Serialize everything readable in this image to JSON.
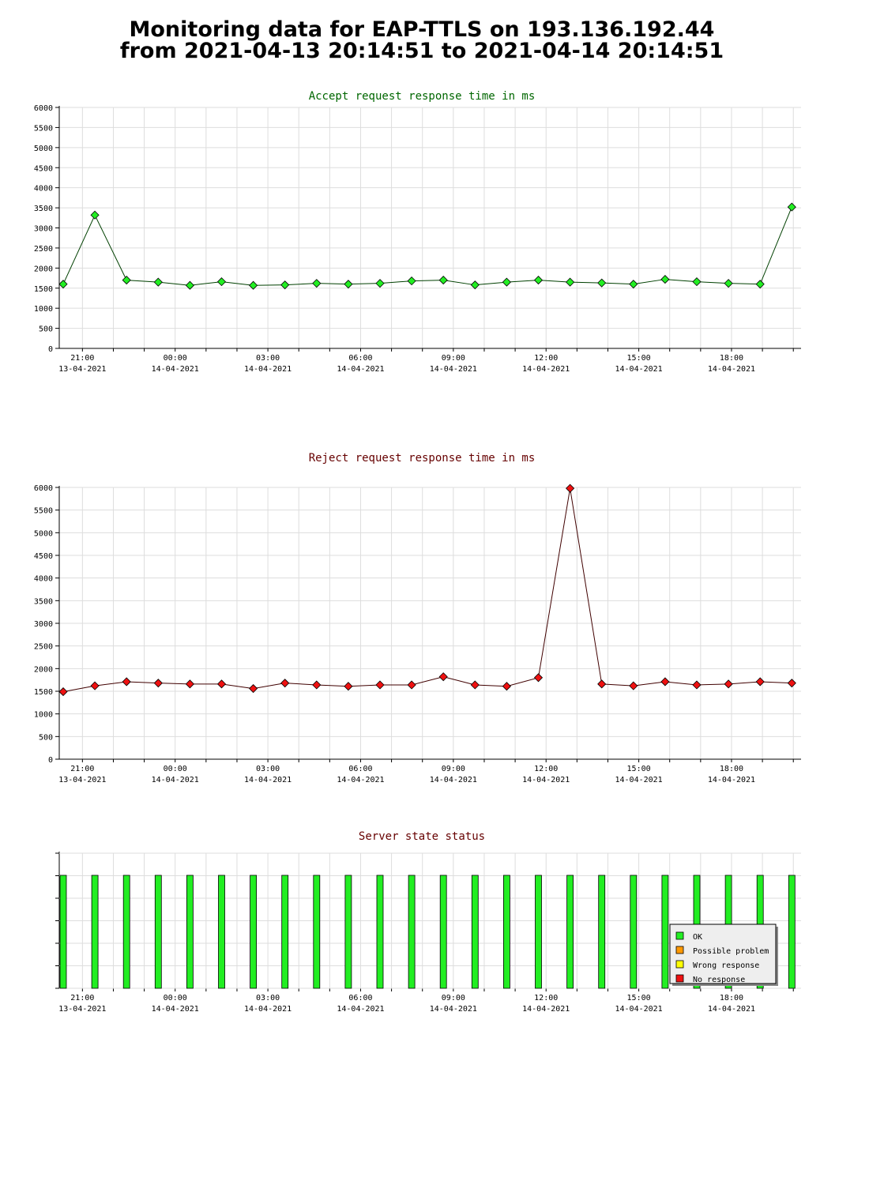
{
  "page": {
    "title_line1": "Monitoring data for EAP-TTLS on 193.136.192.44",
    "title_line2": "from 2021-04-13 20:14:51 to 2021-04-14 20:14:51"
  },
  "colors": {
    "accept_line": "#004000",
    "accept_marker": "#22ee22",
    "reject_line": "#400000",
    "reject_marker": "#ee1111",
    "accept_title": "#006600",
    "reject_title": "#660000",
    "status_title": "#660000",
    "ok": "#22ee22",
    "possible_problem": "#ff9900",
    "wrong_response": "#ffff00",
    "no_response": "#ee1111"
  },
  "chart_data": [
    {
      "id": "accept",
      "type": "line",
      "title": "Accept request response time in ms",
      "x_tick_times": [
        "21:00",
        "00:00",
        "03:00",
        "06:00",
        "09:00",
        "12:00",
        "15:00",
        "18:00"
      ],
      "x_tick_dates": [
        "13-04-2021",
        "14-04-2021",
        "14-04-2021",
        "14-04-2021",
        "14-04-2021",
        "14-04-2021",
        "14-04-2021",
        "14-04-2021"
      ],
      "y_ticks": [
        0,
        500,
        1000,
        1500,
        2000,
        2500,
        3000,
        3500,
        4000,
        4500,
        5000,
        5500,
        6000
      ],
      "ylim": [
        0,
        6000
      ],
      "grid": true,
      "values": [
        1600,
        3320,
        1700,
        1650,
        1570,
        1660,
        1570,
        1580,
        1620,
        1600,
        1620,
        1680,
        1700,
        1580,
        1650,
        1700,
        1650,
        1630,
        1600,
        1720,
        1660,
        1620,
        1600,
        3520
      ]
    },
    {
      "id": "reject",
      "type": "line",
      "title": "Reject request response time in ms",
      "x_tick_times": [
        "21:00",
        "00:00",
        "03:00",
        "06:00",
        "09:00",
        "12:00",
        "15:00",
        "18:00"
      ],
      "x_tick_dates": [
        "13-04-2021",
        "14-04-2021",
        "14-04-2021",
        "14-04-2021",
        "14-04-2021",
        "14-04-2021",
        "14-04-2021",
        "14-04-2021"
      ],
      "y_ticks": [
        0,
        500,
        1000,
        1500,
        2000,
        2500,
        3000,
        3500,
        4000,
        4500,
        5000,
        5500,
        6000
      ],
      "ylim": [
        0,
        6000
      ],
      "grid": true,
      "values": [
        1490,
        1620,
        1710,
        1680,
        1660,
        1660,
        1560,
        1680,
        1640,
        1610,
        1640,
        1640,
        1820,
        1640,
        1610,
        1800,
        5980,
        1660,
        1620,
        1710,
        1640,
        1660,
        1710,
        1680
      ]
    },
    {
      "id": "status",
      "type": "bar",
      "title": "Server state status",
      "x_tick_times": [
        "21:00",
        "00:00",
        "03:00",
        "06:00",
        "09:00",
        "12:00",
        "15:00",
        "18:00"
      ],
      "x_tick_dates": [
        "13-04-2021",
        "14-04-2021",
        "14-04-2021",
        "14-04-2021",
        "14-04-2021",
        "14-04-2021",
        "14-04-2021",
        "14-04-2021"
      ],
      "grid": true,
      "legend_position": "bottom-right",
      "legend": [
        {
          "label": "OK",
          "color": "#22ee22"
        },
        {
          "label": "Possible problem",
          "color": "#ff9900"
        },
        {
          "label": "Wrong response",
          "color": "#ffff00"
        },
        {
          "label": "No response",
          "color": "#ee1111"
        }
      ],
      "values": [
        "OK",
        "OK",
        "OK",
        "OK",
        "OK",
        "OK",
        "OK",
        "OK",
        "OK",
        "OK",
        "OK",
        "OK",
        "OK",
        "OK",
        "OK",
        "OK",
        "OK",
        "OK",
        "OK",
        "OK",
        "OK",
        "OK",
        "OK",
        "OK"
      ]
    }
  ]
}
